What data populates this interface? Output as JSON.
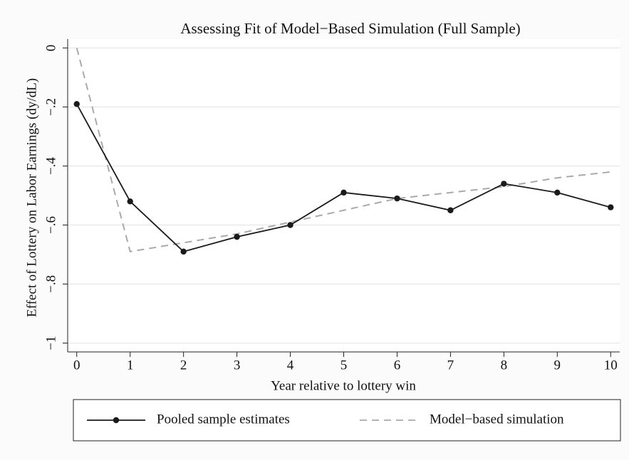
{
  "chart_data": {
    "type": "line",
    "title": "Assessing Fit of Model−Based Simulation (Full Sample)",
    "x_label": "Year relative to lottery win",
    "y_label": "Effect of Lottery on Labor Earnings (dy/dL)",
    "x": [
      0,
      1,
      2,
      3,
      4,
      5,
      6,
      7,
      8,
      9,
      10
    ],
    "series": [
      {
        "name": "Pooled sample estimates",
        "color": "#1a1a1a",
        "marker": true,
        "dashed": false,
        "values": [
          -0.19,
          -0.52,
          -0.69,
          -0.64,
          -0.6,
          -0.49,
          -0.51,
          -0.55,
          -0.46,
          -0.49,
          -0.54
        ]
      },
      {
        "name": "Model−based simulation",
        "color": "#aaaaaa",
        "marker": false,
        "dashed": true,
        "values": [
          0,
          -0.69,
          -0.66,
          -0.63,
          -0.59,
          -0.55,
          -0.51,
          -0.49,
          -0.47,
          -0.44,
          -0.42
        ]
      }
    ],
    "xlim": [
      -0.17,
      10.17
    ],
    "xticks": [
      0,
      1,
      2,
      3,
      4,
      5,
      6,
      7,
      8,
      9,
      10
    ],
    "ylim": [
      -1.03,
      0.03
    ],
    "yticks": [
      0,
      {
        "value": -0.2,
        "label": "−.2"
      },
      {
        "value": -0.4,
        "label": "−.4"
      },
      {
        "value": -0.6,
        "label": "−.6"
      },
      {
        "value": -0.8,
        "label": "−.8"
      },
      {
        "value": -1,
        "label": "−1"
      }
    ],
    "grid": true,
    "legend": "bottom"
  }
}
